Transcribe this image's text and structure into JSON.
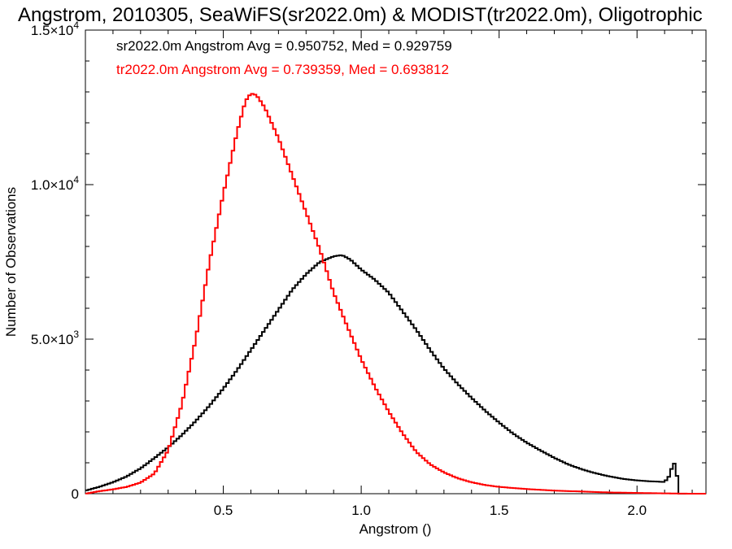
{
  "chart_data": {
    "type": "line",
    "title": "Angstrom, 2010305, SeaWiFS(sr2022.0m) & MODIST(tr2022.0m), Oligotrophic",
    "xlabel": "Angstrom ()",
    "ylabel": "Number of Observations",
    "xlim": [
      0.0,
      2.25
    ],
    "ylim": [
      0,
      15000
    ],
    "x_ticks": [
      {
        "value": 0.5,
        "label": "0.5"
      },
      {
        "value": 1.0,
        "label": "1.0"
      },
      {
        "value": 1.5,
        "label": "1.5"
      },
      {
        "value": 2.0,
        "label": "2.0"
      }
    ],
    "y_ticks": [
      {
        "value": 0,
        "mantissa": "0",
        "exponent": ""
      },
      {
        "value": 5000,
        "mantissa": "5.0×10",
        "exponent": "3"
      },
      {
        "value": 10000,
        "mantissa": "1.0×10",
        "exponent": "4"
      },
      {
        "value": 15000,
        "mantissa": "1.5×10",
        "exponent": "4"
      }
    ],
    "grid": false,
    "legend_position": "top-left",
    "series": [
      {
        "label": "sr2022.0m Angstrom Avg = 0.950752, Med = 0.929759",
        "color": "#000000",
        "step": true,
        "points": [
          [
            0.0,
            100
          ],
          [
            0.05,
            220
          ],
          [
            0.1,
            370
          ],
          [
            0.15,
            560
          ],
          [
            0.2,
            820
          ],
          [
            0.25,
            1150
          ],
          [
            0.3,
            1500
          ],
          [
            0.35,
            1900
          ],
          [
            0.4,
            2350
          ],
          [
            0.45,
            2850
          ],
          [
            0.5,
            3400
          ],
          [
            0.55,
            4000
          ],
          [
            0.6,
            4650
          ],
          [
            0.65,
            5300
          ],
          [
            0.7,
            5950
          ],
          [
            0.75,
            6600
          ],
          [
            0.8,
            7100
          ],
          [
            0.85,
            7500
          ],
          [
            0.9,
            7680
          ],
          [
            0.93,
            7720
          ],
          [
            0.96,
            7580
          ],
          [
            1.0,
            7250
          ],
          [
            1.05,
            6920
          ],
          [
            1.1,
            6500
          ],
          [
            1.15,
            5900
          ],
          [
            1.2,
            5300
          ],
          [
            1.25,
            4650
          ],
          [
            1.3,
            4050
          ],
          [
            1.35,
            3550
          ],
          [
            1.4,
            3100
          ],
          [
            1.45,
            2680
          ],
          [
            1.5,
            2300
          ],
          [
            1.55,
            1950
          ],
          [
            1.6,
            1650
          ],
          [
            1.65,
            1400
          ],
          [
            1.7,
            1160
          ],
          [
            1.75,
            950
          ],
          [
            1.8,
            790
          ],
          [
            1.85,
            660
          ],
          [
            1.9,
            560
          ],
          [
            1.95,
            480
          ],
          [
            2.0,
            430
          ],
          [
            2.05,
            400
          ],
          [
            2.1,
            380
          ],
          [
            2.12,
            600
          ],
          [
            2.13,
            1000
          ],
          [
            2.14,
            950
          ],
          [
            2.15,
            200
          ],
          [
            2.155,
            0
          ],
          [
            2.25,
            0
          ]
        ]
      },
      {
        "label": "tr2022.0m Angstrom Avg = 0.739359, Med = 0.693812",
        "color": "#ff0000",
        "step": true,
        "points": [
          [
            0.0,
            0
          ],
          [
            0.05,
            80
          ],
          [
            0.1,
            140
          ],
          [
            0.15,
            220
          ],
          [
            0.2,
            360
          ],
          [
            0.25,
            650
          ],
          [
            0.3,
            1400
          ],
          [
            0.35,
            2900
          ],
          [
            0.4,
            5000
          ],
          [
            0.45,
            7500
          ],
          [
            0.5,
            9700
          ],
          [
            0.55,
            11700
          ],
          [
            0.58,
            12700
          ],
          [
            0.6,
            12950
          ],
          [
            0.62,
            12900
          ],
          [
            0.65,
            12500
          ],
          [
            0.7,
            11500
          ],
          [
            0.75,
            10300
          ],
          [
            0.8,
            9100
          ],
          [
            0.85,
            7900
          ],
          [
            0.9,
            6500
          ],
          [
            0.95,
            5400
          ],
          [
            1.0,
            4350
          ],
          [
            1.05,
            3450
          ],
          [
            1.1,
            2650
          ],
          [
            1.15,
            1950
          ],
          [
            1.2,
            1350
          ],
          [
            1.25,
            950
          ],
          [
            1.3,
            690
          ],
          [
            1.35,
            500
          ],
          [
            1.4,
            370
          ],
          [
            1.45,
            280
          ],
          [
            1.5,
            220
          ],
          [
            1.6,
            150
          ],
          [
            1.7,
            100
          ],
          [
            1.8,
            70
          ],
          [
            1.9,
            40
          ],
          [
            2.0,
            25
          ],
          [
            2.1,
            10
          ],
          [
            2.2,
            0
          ],
          [
            2.25,
            0
          ]
        ]
      }
    ]
  }
}
